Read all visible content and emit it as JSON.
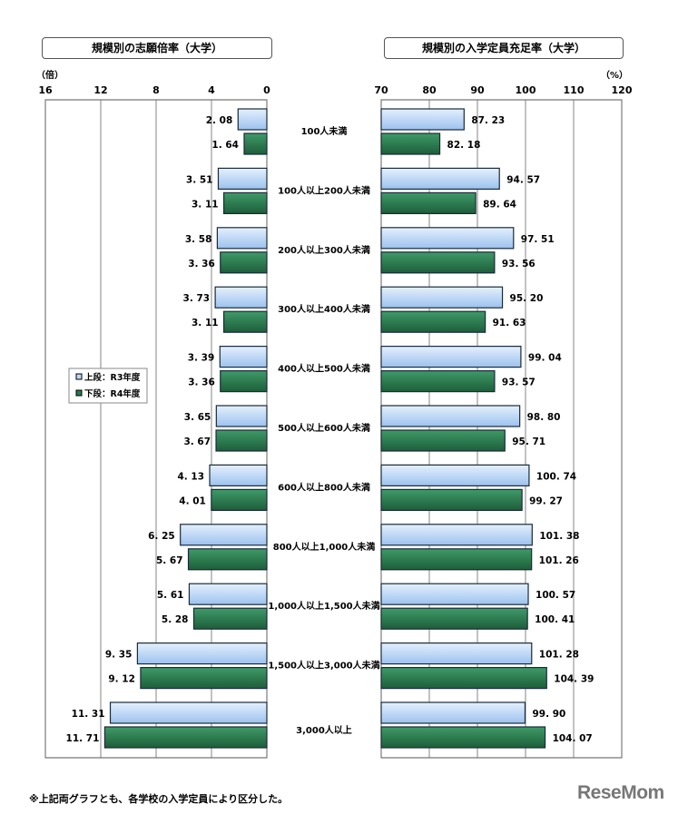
{
  "chart_data": [
    {
      "type": "bar",
      "orientation": "horizontal",
      "title": "規模別の志願倍率（大学）",
      "unit": "（倍）",
      "xlim": [
        16,
        0
      ],
      "ticks": [
        "16",
        "12",
        "8",
        "4",
        "0"
      ],
      "grid": true,
      "categories": [
        "100人未満",
        "100人以上200人未満",
        "200人以上300人未満",
        "300人以上400人未満",
        "400人以上500人未満",
        "500人以上600人未満",
        "600人以上800人未満",
        "800人以上1,000人未満",
        "1,000人以上1,500人未満",
        "1,500人以上3,000人未満",
        "3,000人以上"
      ],
      "series": [
        {
          "name": "上段：R3年度",
          "values": [
            2.08,
            3.51,
            3.58,
            3.73,
            3.39,
            3.65,
            4.13,
            6.25,
            5.61,
            9.35,
            11.31
          ]
        },
        {
          "name": "下段：R4年度",
          "values": [
            1.64,
            3.11,
            3.36,
            3.11,
            3.36,
            3.67,
            4.01,
            5.67,
            5.28,
            9.12,
            11.71
          ]
        }
      ],
      "legend_placement": "middle-left"
    },
    {
      "type": "bar",
      "orientation": "horizontal",
      "title": "規模別の入学定員充足率（大学）",
      "unit": "（%）",
      "xlim": [
        70,
        120
      ],
      "ticks": [
        "70",
        "80",
        "90",
        "100",
        "110",
        "120"
      ],
      "grid": true,
      "series": [
        {
          "name": "上段：R3年度",
          "values": [
            87.23,
            94.57,
            97.51,
            95.2,
            99.04,
            98.8,
            100.74,
            101.38,
            100.57,
            101.28,
            99.9
          ]
        },
        {
          "name": "下段：R4年度",
          "values": [
            82.18,
            89.64,
            93.56,
            91.63,
            93.57,
            95.71,
            99.27,
            101.26,
            100.41,
            104.39,
            104.07
          ]
        }
      ]
    }
  ],
  "colors": {
    "r3": "#bcd8f8",
    "r4": "#2a7a4e"
  },
  "footnote": "※上記両グラフとも、各学校の入学定員により区分した。",
  "logo": "ReseMom"
}
